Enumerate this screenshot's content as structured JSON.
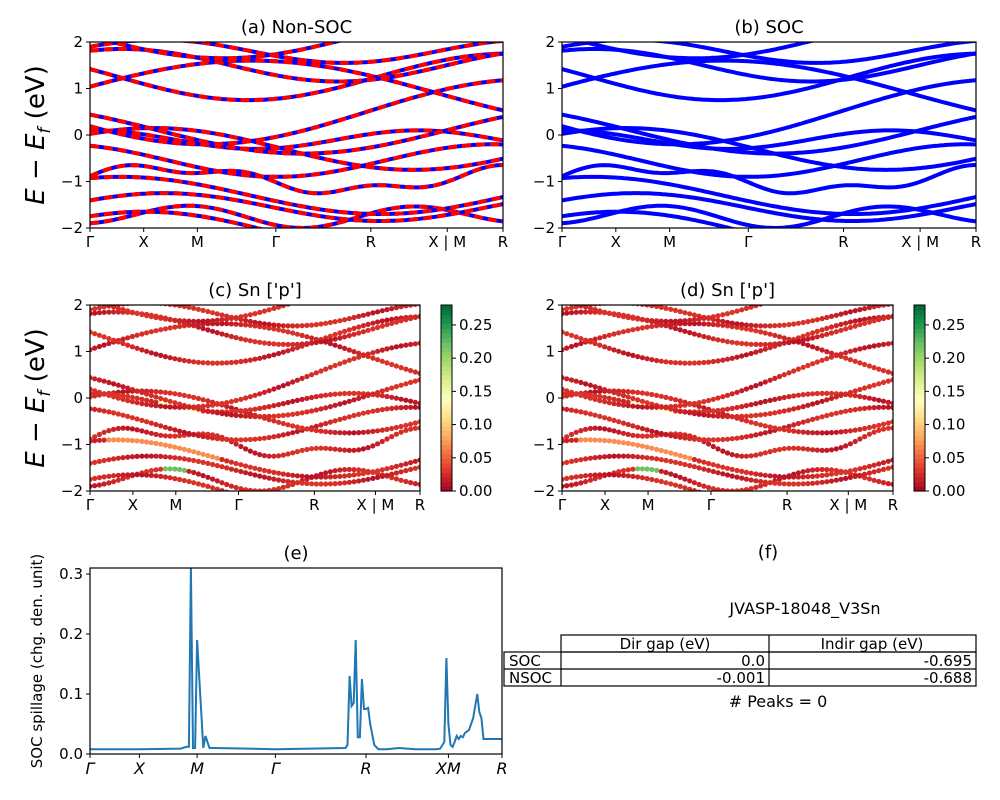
{
  "figure": {
    "row_ylabel": "E − E",
    "row_ylabel_sub": "f",
    "row_ylabel_unit": " (eV)"
  },
  "chart_data": [
    {
      "id": "a",
      "type": "line",
      "title": "(a) Non-SOC",
      "ylim": [
        -2,
        2
      ],
      "yticks": [
        "2",
        "1",
        "0",
        "−1",
        "−2"
      ],
      "xticks": [
        "Γ",
        "X",
        "M",
        "Γ",
        "R",
        "X | M",
        "R"
      ],
      "style": "blue lines overlaid with red dashes",
      "colors": {
        "line": "#0000ff",
        "dash": "#ff0000"
      }
    },
    {
      "id": "b",
      "type": "line",
      "title": "(b) SOC",
      "ylim": [
        -2,
        2
      ],
      "yticks": [
        "2",
        "1",
        "0",
        "−1",
        "−2"
      ],
      "xticks": [
        "Γ",
        "X",
        "M",
        "Γ",
        "R",
        "X | M",
        "R"
      ],
      "colors": {
        "line": "#0000ff"
      }
    },
    {
      "id": "c",
      "type": "scatter",
      "title": "(c)  Sn ['p']",
      "ylim": [
        -2,
        2
      ],
      "yticks": [
        "2",
        "1",
        "0",
        "−1",
        "−2"
      ],
      "xticks": [
        "Γ",
        "X",
        "M",
        "Γ",
        "R",
        "X | M",
        "R"
      ],
      "colorbar": {
        "ticks": [
          "0.25",
          "0.20",
          "0.15",
          "0.10",
          "0.05",
          "0.00"
        ],
        "range": [
          0,
          0.28
        ],
        "cmap": "RdYlGn"
      }
    },
    {
      "id": "d",
      "type": "scatter",
      "title": "(d) Sn ['p']",
      "ylim": [
        -2,
        2
      ],
      "yticks": [
        "2",
        "1",
        "0",
        "−1",
        "−2"
      ],
      "xticks": [
        "Γ",
        "X",
        "M",
        "Γ",
        "R",
        "X | M",
        "R"
      ],
      "colorbar": {
        "ticks": [
          "0.25",
          "0.20",
          "0.15",
          "0.10",
          "0.05",
          "0.00"
        ],
        "range": [
          0,
          0.28
        ],
        "cmap": "RdYlGn"
      }
    },
    {
      "id": "e",
      "type": "line",
      "title": "(e)",
      "ylabel": "SOC spillage (chg. den. unit)",
      "ylim": [
        0,
        0.31
      ],
      "yticks": [
        "0.3",
        "0.2",
        "0.1",
        "0.0"
      ],
      "xticks": [
        "Γ",
        "X",
        "M",
        "Γ",
        "R",
        "XM",
        "R"
      ],
      "x": [
        0,
        0.12,
        0.22,
        0.235,
        0.24,
        0.245,
        0.25,
        0.255,
        0.26,
        0.275,
        0.28,
        0.29,
        0.3,
        0.45,
        0.62,
        0.625,
        0.63,
        0.635,
        0.64,
        0.645,
        0.65,
        0.655,
        0.66,
        0.665,
        0.67,
        0.675,
        0.68,
        0.69,
        0.7,
        0.72,
        0.75,
        0.79,
        0.84,
        0.85,
        0.86,
        0.865,
        0.87,
        0.875,
        0.88,
        0.885,
        0.89,
        0.895,
        0.9,
        0.905,
        0.91,
        0.92,
        0.93,
        0.935,
        0.94,
        0.945,
        0.95,
        0.955,
        0.97,
        0.975,
        0.98,
        0.99,
        1.0
      ],
      "y": [
        0.008,
        0.008,
        0.009,
        0.012,
        0.012,
        0.31,
        0.01,
        0.01,
        0.19,
        0.01,
        0.03,
        0.01,
        0.01,
        0.008,
        0.01,
        0.015,
        0.13,
        0.08,
        0.085,
        0.19,
        0.028,
        0.028,
        0.125,
        0.075,
        0.075,
        0.077,
        0.05,
        0.015,
        0.008,
        0.008,
        0.01,
        0.008,
        0.008,
        0.009,
        0.02,
        0.16,
        0.05,
        0.015,
        0.012,
        0.02,
        0.03,
        0.025,
        0.03,
        0.028,
        0.035,
        0.04,
        0.06,
        0.08,
        0.1,
        0.07,
        0.06,
        0.025,
        0.025,
        0.025,
        0.025,
        0.025,
        0.025
      ],
      "colors": {
        "line": "#1f77b4"
      }
    }
  ],
  "panel_f": {
    "title": "(f)",
    "material": "JVASP-18048_V3Sn",
    "headers": [
      "Dir gap (eV)",
      "Indir gap (eV)"
    ],
    "rows": [
      {
        "label": "SOC",
        "dir": "0.0",
        "indir": "-0.695"
      },
      {
        "label": "NSOC",
        "dir": "-0.001",
        "indir": "-0.688"
      }
    ],
    "peaks": "# Peaks = 0"
  }
}
